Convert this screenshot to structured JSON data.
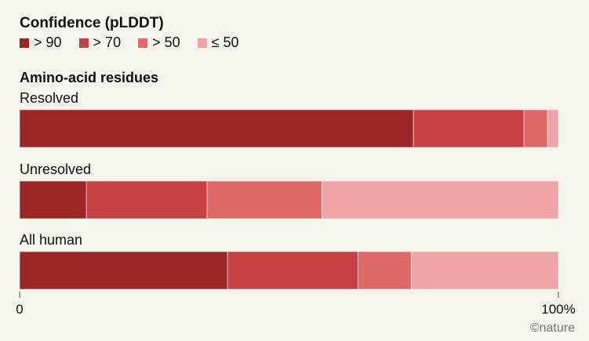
{
  "chart_data": {
    "type": "bar",
    "orientation": "horizontal",
    "stacked": true,
    "title": "Confidence (pLDDT)",
    "subtitle": "Amino-acid residues",
    "categories": [
      "Resolved",
      "Unresolved",
      "All human"
    ],
    "series": [
      {
        "name": "> 90",
        "color": "#9b2625",
        "values": [
          73.1,
          12.4,
          38.6
        ]
      },
      {
        "name": "> 70",
        "color": "#c74143",
        "values": [
          20.5,
          22.4,
          24.2
        ]
      },
      {
        "name": "> 50",
        "color": "#df6868",
        "values": [
          4.4,
          21.3,
          9.9
        ]
      },
      {
        "name": "≤ 50",
        "color": "#eea4a5",
        "values": [
          2.0,
          43.9,
          27.3
        ]
      }
    ],
    "xlim": [
      0,
      100
    ],
    "xticks": [
      "0",
      "100%"
    ],
    "grid": false,
    "legend": "top-left"
  },
  "credit": "©nature"
}
